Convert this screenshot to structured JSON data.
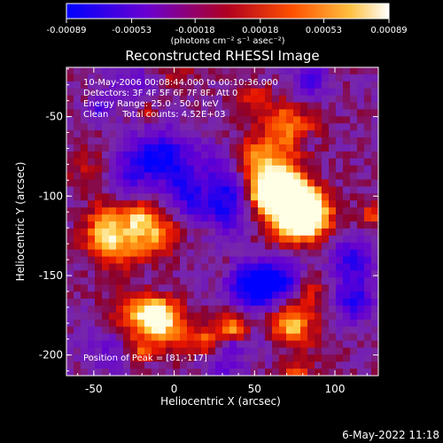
{
  "chart_data": {
    "type": "heatmap",
    "title": "Reconstructed RHESSI Image",
    "xlabel": "Heliocentric X (arcsec)",
    "ylabel": "Heliocentric Y (arcsec)",
    "xlim": [
      -67,
      127
    ],
    "ylim": [
      -213,
      -19
    ],
    "x_ticks": [
      -50,
      0,
      50,
      100
    ],
    "y_ticks": [
      -50,
      -100,
      -150,
      -200
    ],
    "x_tick_labels": [
      "-50",
      "0",
      "50",
      "100"
    ],
    "y_tick_labels": [
      "-50",
      "-100",
      "-150",
      "-200"
    ],
    "colorbar": {
      "range": [
        -0.00089,
        0.00089
      ],
      "tick_values": [
        -0.00089,
        -0.00053,
        -0.00018,
        0.00018,
        0.00053,
        0.00089
      ],
      "tick_labels": [
        "-0.00089",
        "-0.00053",
        "-0.00018",
        "0.00018",
        "0.00053",
        "0.00089"
      ],
      "units_label": "(photons cm⁻² s⁻¹ asec⁻²)",
      "colors": [
        "#0000ff",
        "#8000c0",
        "#cc0000",
        "#ff8000",
        "#ffffc0",
        "#ffffff"
      ]
    },
    "annotations": [
      "10-May-2006 00:08:44.000 to 00:10:36.000",
      "Detectors: 3F 4F 5F 6F 7F 8F, Att 0",
      "Energy Range: 25.0 - 50.0 keV",
      "Clean     Total counts: 4.52E+03",
      "Position of Peak = [81,-117]"
    ],
    "peak": [
      81,
      -117
    ],
    "grid": false,
    "legend": "none"
  },
  "footer_date": "6-May-2022 11:18"
}
